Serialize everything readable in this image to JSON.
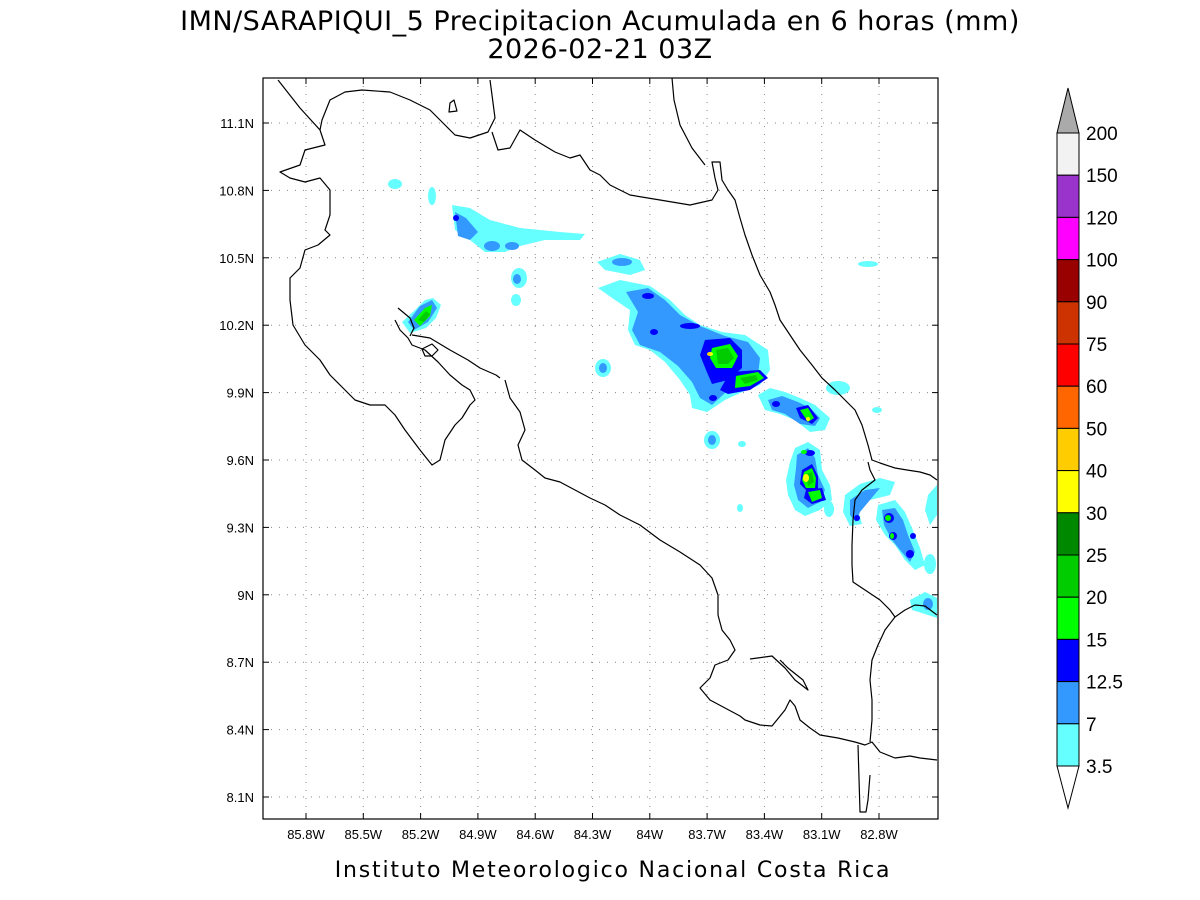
{
  "title_line1": "IMN/SARAPIQUI_5 Precipitacion Acumulada en 6 horas (mm)",
  "title_line2": "2026-02-21 03Z",
  "footer": "Instituto Meteorologico Nacional Costa Rica",
  "lon_ticks": [
    "85.8W",
    "85.5W",
    "85.2W",
    "84.9W",
    "84.6W",
    "84.3W",
    "84W",
    "83.7W",
    "83.4W",
    "83.1W",
    "82.8W"
  ],
  "lat_ticks": [
    "11.1N",
    "10.8N",
    "10.5N",
    "10.2N",
    "9.9N",
    "9.6N",
    "9.3N",
    "9N",
    "8.7N",
    "8.4N",
    "8.1N"
  ],
  "colorbar": {
    "labels": [
      "3.5",
      "7",
      "12.5",
      "15",
      "20",
      "25",
      "30",
      "40",
      "50",
      "60",
      "75",
      "90",
      "100",
      "120",
      "150",
      "200"
    ],
    "colors": [
      "#66ffff",
      "#3399ff",
      "#0000ff",
      "#00ff00",
      "#00cc00",
      "#008800",
      "#ffff00",
      "#ffcc00",
      "#ff6600",
      "#ff0000",
      "#cc3300",
      "#990000",
      "#ff00ff",
      "#9933cc",
      "#f2f2f2",
      "#aaaaaa"
    ]
  }
}
